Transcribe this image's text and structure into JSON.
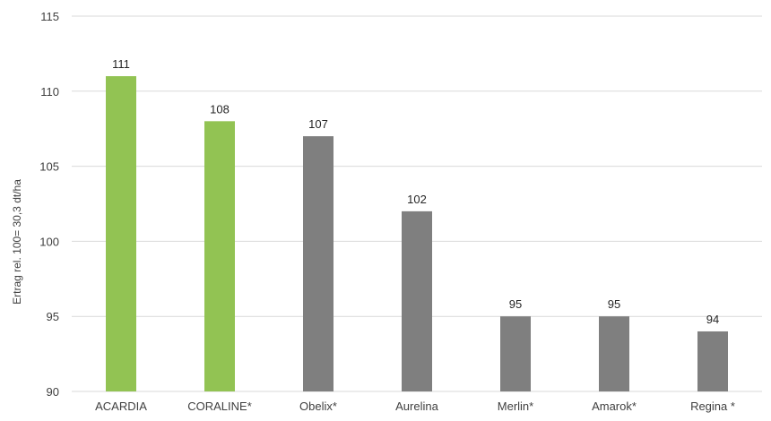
{
  "chart_data": {
    "type": "bar",
    "categories": [
      "ACARDIA",
      "CORALINE*",
      "Obelix*",
      "Aurelina",
      "Merlin*",
      "Amarok*",
      "Regina *"
    ],
    "values": [
      111,
      108,
      107,
      102,
      95,
      95,
      94
    ],
    "ylabel": "Ertrag rel. 100= 30,3 dt/ha",
    "ylim": [
      90,
      115
    ],
    "yticks": [
      90,
      95,
      100,
      105,
      110,
      115
    ],
    "grid": true,
    "legend": "none",
    "colors": [
      "#92c353",
      "#92c353",
      "#7f7f7f",
      "#7f7f7f",
      "#7f7f7f",
      "#7f7f7f",
      "#7f7f7f"
    ]
  }
}
